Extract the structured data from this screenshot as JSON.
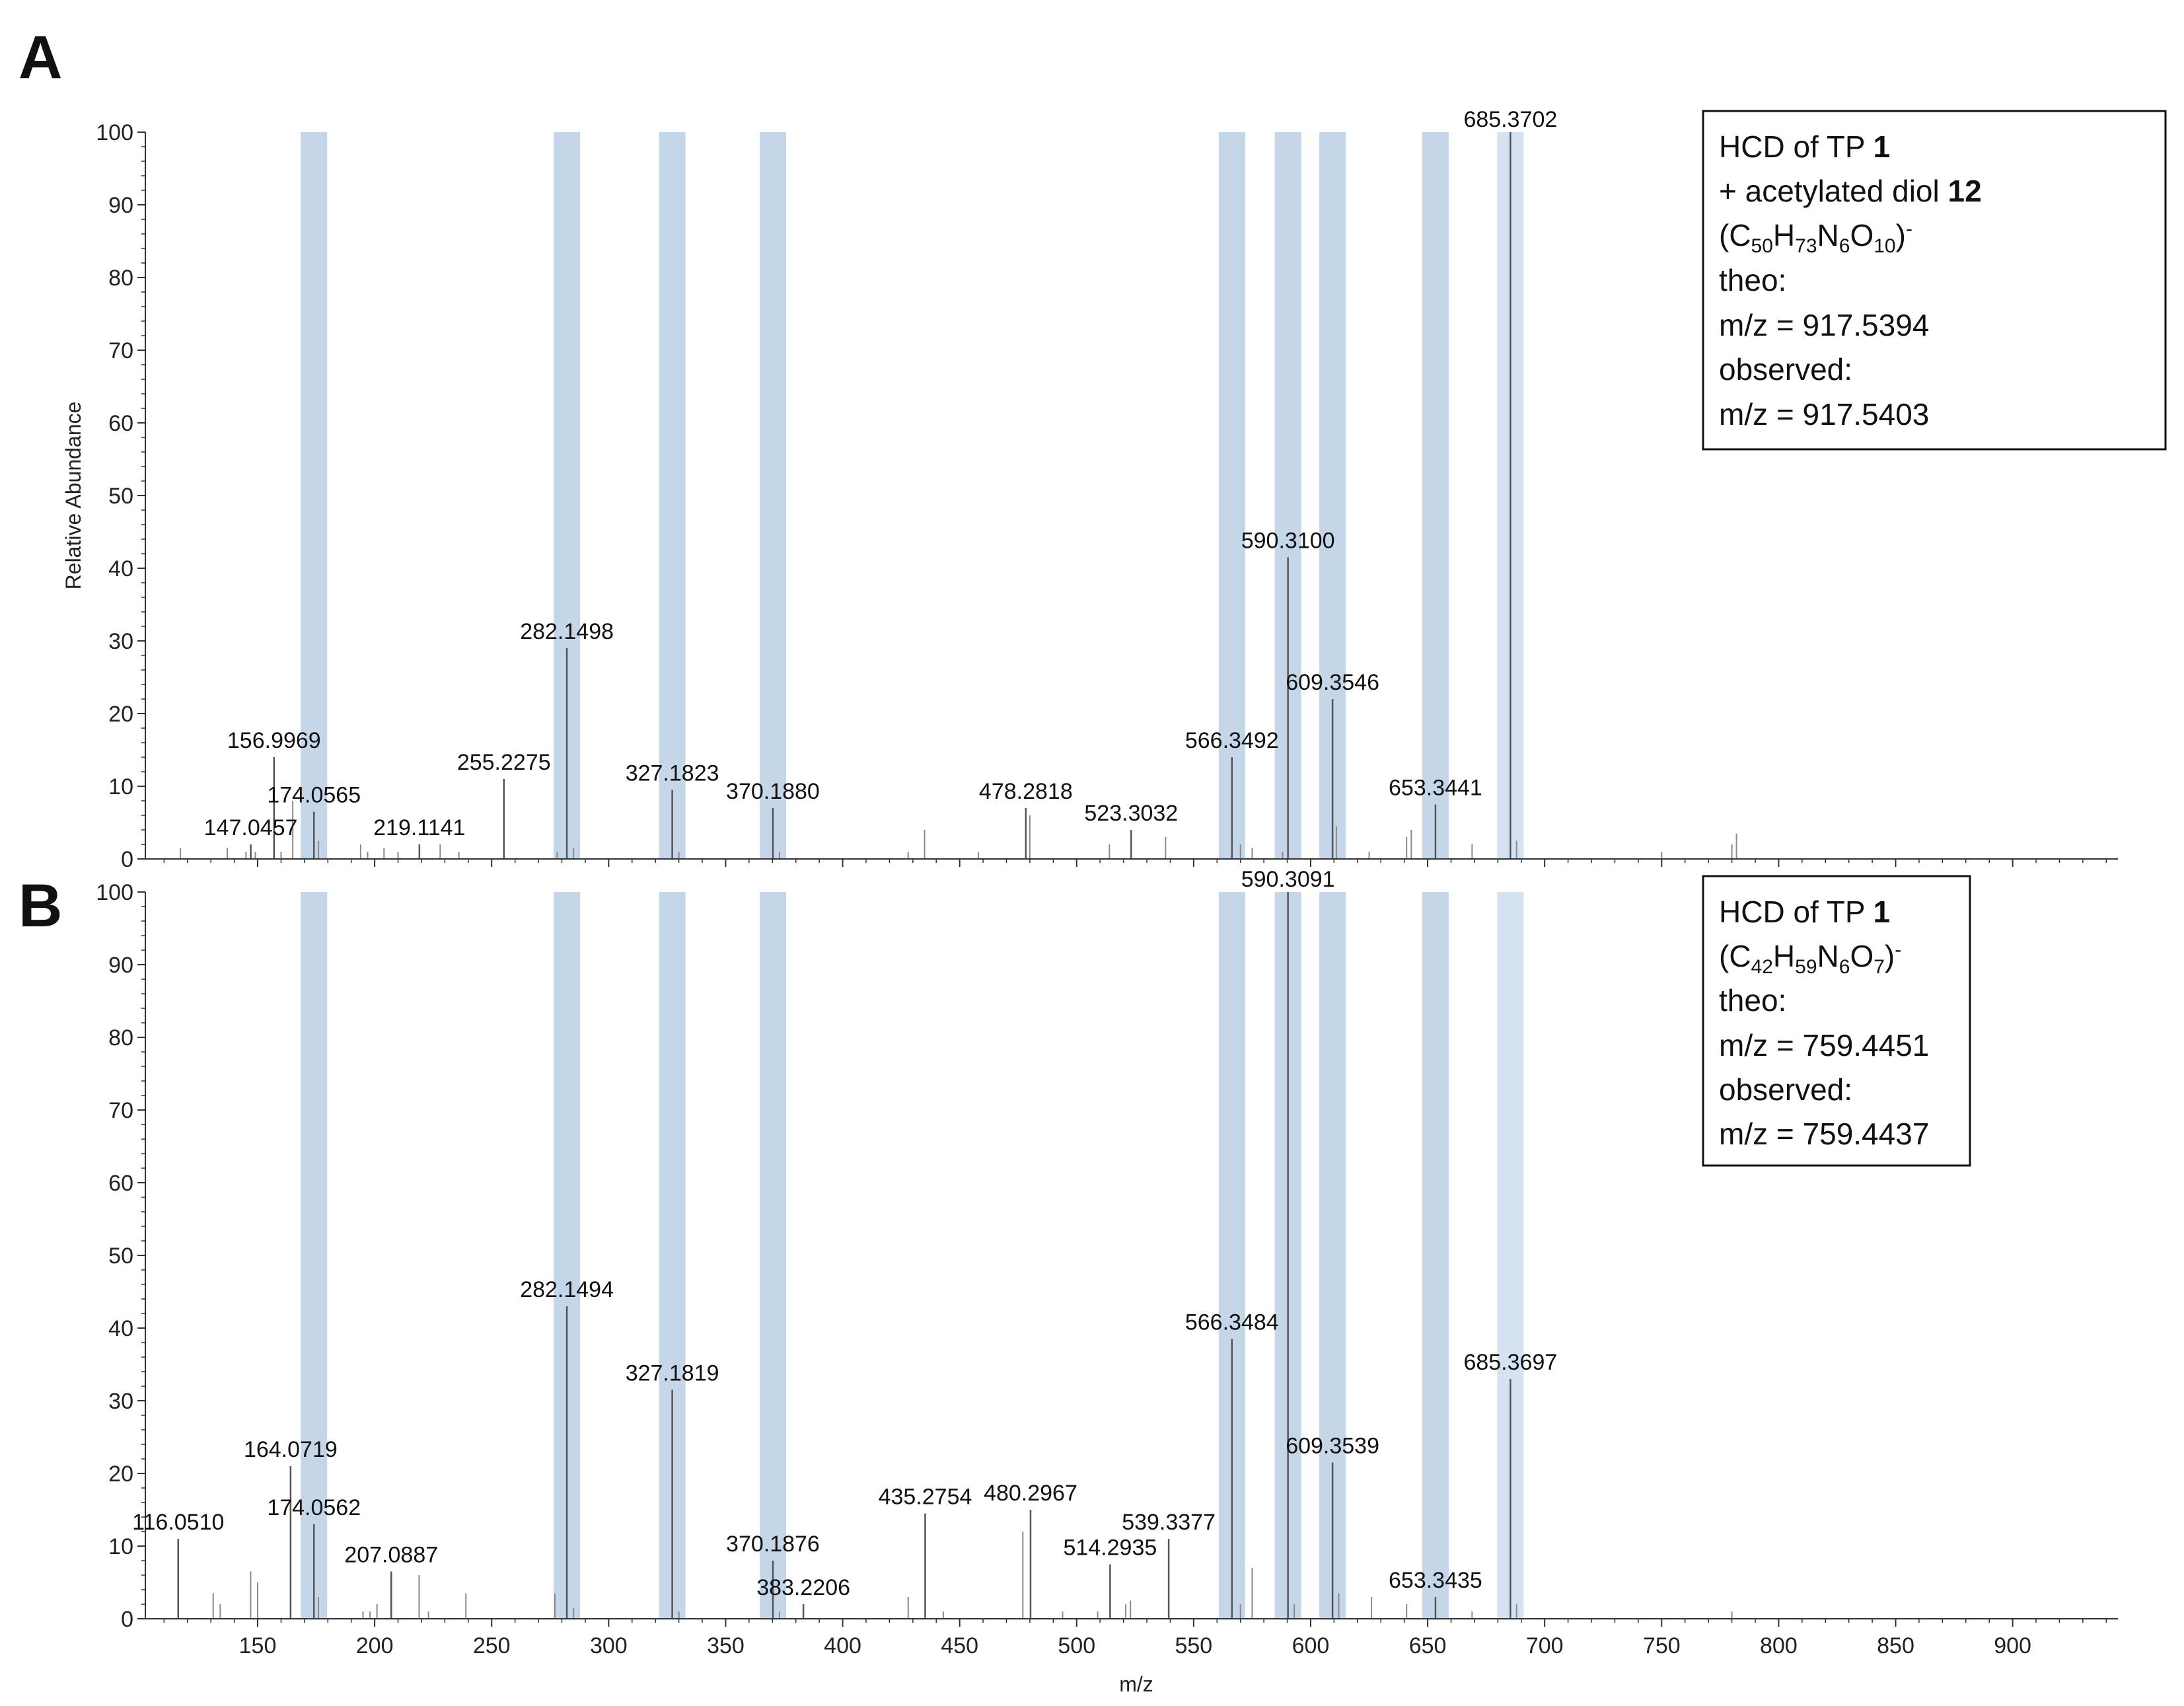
{
  "chart_data": [
    {
      "panel": "A",
      "type": "bar",
      "title": "",
      "xlabel": "m/z",
      "ylabel": "Relative Abundance",
      "xlim": [
        102,
        945
      ],
      "ylim": [
        0,
        100
      ],
      "xticks": [
        150,
        200,
        250,
        300,
        350,
        400,
        450,
        500,
        550,
        600,
        650,
        700,
        750,
        800,
        850,
        900
      ],
      "yticks": [
        0,
        10,
        20,
        30,
        40,
        50,
        60,
        70,
        80,
        90,
        100
      ],
      "highlight_mz": [
        174.06,
        282.15,
        327.18,
        370.19,
        566.35,
        590.31,
        609.35,
        653.34,
        685.37
      ],
      "labeled_peaks": [
        {
          "mz": 147.0457,
          "intensity": 2,
          "label": "147.0457"
        },
        {
          "mz": 156.9969,
          "intensity": 14,
          "label": "156.9969"
        },
        {
          "mz": 174.0565,
          "intensity": 6.5,
          "label": "174.0565"
        },
        {
          "mz": 219.1141,
          "intensity": 2,
          "label": "219.1141"
        },
        {
          "mz": 255.2275,
          "intensity": 11,
          "label": "255.2275"
        },
        {
          "mz": 282.1498,
          "intensity": 29,
          "label": "282.1498"
        },
        {
          "mz": 327.1823,
          "intensity": 9.5,
          "label": "327.1823"
        },
        {
          "mz": 370.188,
          "intensity": 7,
          "label": "370.1880"
        },
        {
          "mz": 478.2818,
          "intensity": 7,
          "label": "478.2818"
        },
        {
          "mz": 523.3032,
          "intensity": 4,
          "label": "523.3032"
        },
        {
          "mz": 566.3492,
          "intensity": 14,
          "label": "566.3492"
        },
        {
          "mz": 590.31,
          "intensity": 41.5,
          "label": "590.3100"
        },
        {
          "mz": 609.3546,
          "intensity": 22,
          "label": "609.3546"
        },
        {
          "mz": 653.3441,
          "intensity": 7.5,
          "label": "653.3441"
        },
        {
          "mz": 685.3702,
          "intensity": 100,
          "label": "685.3702"
        }
      ],
      "minor_peaks": [
        {
          "mz": 117,
          "intensity": 1.5
        },
        {
          "mz": 137,
          "intensity": 1.5
        },
        {
          "mz": 145,
          "intensity": 1.0
        },
        {
          "mz": 149,
          "intensity": 1.0
        },
        {
          "mz": 160,
          "intensity": 1.0
        },
        {
          "mz": 165,
          "intensity": 8.0
        },
        {
          "mz": 176,
          "intensity": 2.5
        },
        {
          "mz": 194,
          "intensity": 2.0
        },
        {
          "mz": 197,
          "intensity": 1.0
        },
        {
          "mz": 204,
          "intensity": 1.5
        },
        {
          "mz": 210,
          "intensity": 1.0
        },
        {
          "mz": 228,
          "intensity": 2.0
        },
        {
          "mz": 236,
          "intensity": 1.0
        },
        {
          "mz": 278,
          "intensity": 1.0
        },
        {
          "mz": 285,
          "intensity": 1.5
        },
        {
          "mz": 330,
          "intensity": 1.0
        },
        {
          "mz": 373,
          "intensity": 1.0
        },
        {
          "mz": 428,
          "intensity": 1.0
        },
        {
          "mz": 435,
          "intensity": 4.0
        },
        {
          "mz": 458,
          "intensity": 1.0
        },
        {
          "mz": 480,
          "intensity": 6.0
        },
        {
          "mz": 514,
          "intensity": 2.0
        },
        {
          "mz": 538,
          "intensity": 3.0
        },
        {
          "mz": 570,
          "intensity": 2.0
        },
        {
          "mz": 575,
          "intensity": 1.5
        },
        {
          "mz": 588,
          "intensity": 1.0
        },
        {
          "mz": 611,
          "intensity": 4.5
        },
        {
          "mz": 625,
          "intensity": 1.0
        },
        {
          "mz": 641,
          "intensity": 3.0
        },
        {
          "mz": 643,
          "intensity": 4.0
        },
        {
          "mz": 669,
          "intensity": 2.0
        },
        {
          "mz": 688,
          "intensity": 2.5
        },
        {
          "mz": 750,
          "intensity": 1.0
        },
        {
          "mz": 780,
          "intensity": 2.0
        },
        {
          "mz": 782,
          "intensity": 3.5
        }
      ],
      "legend": {
        "line1_prefix": "HCD of TP ",
        "line1_bold": "1",
        "line2_prefix": "+ acetylated diol ",
        "line2_bold": "12",
        "formula": [
          {
            "t": "(C"
          },
          {
            "t": "50",
            "sub": true
          },
          {
            "t": "H"
          },
          {
            "t": "73",
            "sub": true
          },
          {
            "t": "N"
          },
          {
            "t": "6",
            "sub": true
          },
          {
            "t": "O"
          },
          {
            "t": "10",
            "sub": true
          },
          {
            "t": ")"
          },
          {
            "t": "-",
            "sup": true
          }
        ],
        "theo_label": "theo:",
        "theo_value": "m/z = 917.5394",
        "observed_label": "observed:",
        "observed_value": "m/z = 917.5403",
        "position": "top-right"
      }
    },
    {
      "panel": "B",
      "type": "bar",
      "title": "",
      "xlabel": "m/z",
      "ylabel": "",
      "xlim": [
        102,
        945
      ],
      "ylim": [
        0,
        100
      ],
      "xticks": [
        150,
        200,
        250,
        300,
        350,
        400,
        450,
        500,
        550,
        600,
        650,
        700,
        750,
        800,
        850,
        900
      ],
      "yticks": [
        0,
        10,
        20,
        30,
        40,
        50,
        60,
        70,
        80,
        90,
        100
      ],
      "xtick_labels": [
        "150",
        "200",
        "250",
        "300",
        "350",
        "400",
        "450",
        "500",
        "550",
        "600",
        "650",
        "700",
        "750",
        "800",
        "850",
        "900"
      ],
      "highlight_mz": [
        174.06,
        282.15,
        327.18,
        370.19,
        566.35,
        590.31,
        609.35,
        653.34,
        685.37
      ],
      "labeled_peaks": [
        {
          "mz": 116.051,
          "intensity": 11,
          "label": "116.0510"
        },
        {
          "mz": 164.0719,
          "intensity": 21,
          "label": "164.0719"
        },
        {
          "mz": 174.0562,
          "intensity": 13,
          "label": "174.0562"
        },
        {
          "mz": 207.0887,
          "intensity": 6.5,
          "label": "207.0887"
        },
        {
          "mz": 282.1494,
          "intensity": 43,
          "label": "282.1494"
        },
        {
          "mz": 327.1819,
          "intensity": 31.5,
          "label": "327.1819"
        },
        {
          "mz": 370.1876,
          "intensity": 8,
          "label": "370.1876"
        },
        {
          "mz": 383.2206,
          "intensity": 2,
          "label": "383.2206"
        },
        {
          "mz": 435.2754,
          "intensity": 14.5,
          "label": "435.2754"
        },
        {
          "mz": 480.2967,
          "intensity": 15,
          "label": "480.2967"
        },
        {
          "mz": 514.2935,
          "intensity": 7.5,
          "label": "514.2935"
        },
        {
          "mz": 539.3377,
          "intensity": 11,
          "label": "539.3377"
        },
        {
          "mz": 566.3484,
          "intensity": 38.5,
          "label": "566.3484"
        },
        {
          "mz": 590.3091,
          "intensity": 100,
          "label": "590.3091"
        },
        {
          "mz": 609.3539,
          "intensity": 21.5,
          "label": "609.3539"
        },
        {
          "mz": 653.3435,
          "intensity": 3,
          "label": "653.3435"
        },
        {
          "mz": 685.3697,
          "intensity": 33,
          "label": "685.3697"
        }
      ],
      "minor_peaks": [
        {
          "mz": 131,
          "intensity": 3.5
        },
        {
          "mz": 134,
          "intensity": 2.0
        },
        {
          "mz": 147,
          "intensity": 6.5
        },
        {
          "mz": 150,
          "intensity": 5.0
        },
        {
          "mz": 176,
          "intensity": 3.0
        },
        {
          "mz": 195,
          "intensity": 1.0
        },
        {
          "mz": 198,
          "intensity": 1.0
        },
        {
          "mz": 201,
          "intensity": 2.0
        },
        {
          "mz": 219,
          "intensity": 6.0
        },
        {
          "mz": 223,
          "intensity": 1.0
        },
        {
          "mz": 239,
          "intensity": 3.5
        },
        {
          "mz": 277,
          "intensity": 3.5
        },
        {
          "mz": 285,
          "intensity": 1.5
        },
        {
          "mz": 330,
          "intensity": 1.0
        },
        {
          "mz": 373,
          "intensity": 1.0
        },
        {
          "mz": 428,
          "intensity": 3.0
        },
        {
          "mz": 443,
          "intensity": 1.0
        },
        {
          "mz": 477,
          "intensity": 12.0
        },
        {
          "mz": 494,
          "intensity": 1.0
        },
        {
          "mz": 509,
          "intensity": 1.0
        },
        {
          "mz": 521,
          "intensity": 2.0
        },
        {
          "mz": 523,
          "intensity": 2.5
        },
        {
          "mz": 570,
          "intensity": 2.0
        },
        {
          "mz": 575,
          "intensity": 7.0
        },
        {
          "mz": 593,
          "intensity": 2.0
        },
        {
          "mz": 612,
          "intensity": 3.5
        },
        {
          "mz": 626,
          "intensity": 3.0
        },
        {
          "mz": 641,
          "intensity": 2.0
        },
        {
          "mz": 669,
          "intensity": 1.0
        },
        {
          "mz": 688,
          "intensity": 2.0
        },
        {
          "mz": 780,
          "intensity": 1.0
        }
      ],
      "legend": {
        "line1_prefix": "HCD of TP ",
        "line1_bold": "1",
        "formula": [
          {
            "t": "(C"
          },
          {
            "t": "42",
            "sub": true
          },
          {
            "t": "H"
          },
          {
            "t": "59",
            "sub": true
          },
          {
            "t": "N"
          },
          {
            "t": "6",
            "sub": true
          },
          {
            "t": "O"
          },
          {
            "t": "7",
            "sub": true
          },
          {
            "t": ")"
          },
          {
            "t": "-",
            "sup": true
          }
        ],
        "theo_label": "theo:",
        "theo_value": "m/z = 759.4451",
        "observed_label": "observed:",
        "observed_value": "m/z = 759.4437",
        "position": "top-right"
      }
    }
  ],
  "figure": {
    "panel_labels": [
      "A",
      "B"
    ],
    "highlight_color": "#9fbadb",
    "highlight_color_light": "#c6d8ee",
    "peak_color": "#555555",
    "axis_color": "#333333"
  }
}
